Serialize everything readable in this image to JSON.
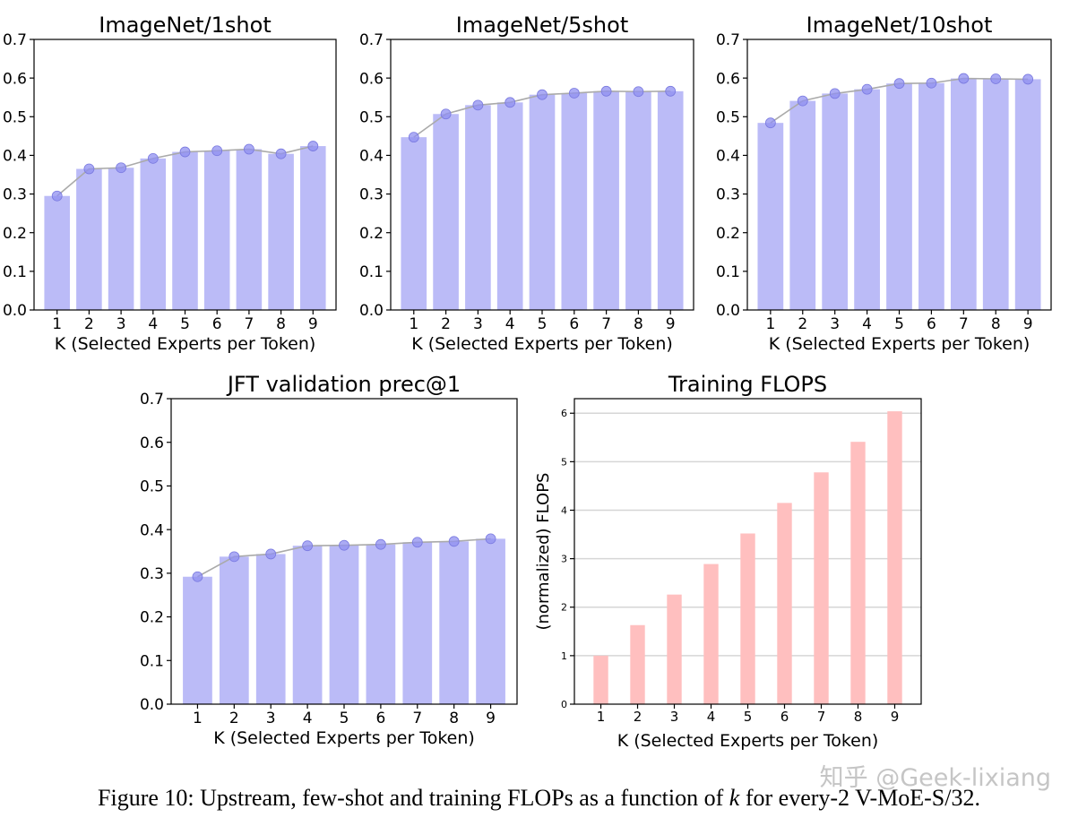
{
  "chart_data": [
    {
      "type": "bar",
      "title": "ImageNet/1shot",
      "xlabel": "K (Selected Experts per Token)",
      "ylabel": "",
      "categories": [
        "1",
        "2",
        "3",
        "4",
        "5",
        "6",
        "7",
        "8",
        "9"
      ],
      "values": [
        0.295,
        0.365,
        0.368,
        0.392,
        0.409,
        0.412,
        0.416,
        0.404,
        0.424
      ],
      "line": true,
      "ylim": [
        0,
        0.7
      ],
      "yticks": [
        "0.0",
        "0.1",
        "0.2",
        "0.3",
        "0.4",
        "0.5",
        "0.6",
        "0.7"
      ],
      "ytick_values": [
        0,
        0.1,
        0.2,
        0.3,
        0.4,
        0.5,
        0.6,
        0.7
      ],
      "grid": false,
      "color": "#bbbbf7"
    },
    {
      "type": "bar",
      "title": "ImageNet/5shot",
      "xlabel": "K (Selected Experts per Token)",
      "ylabel": "",
      "categories": [
        "1",
        "2",
        "3",
        "4",
        "5",
        "6",
        "7",
        "8",
        "9"
      ],
      "values": [
        0.447,
        0.507,
        0.53,
        0.537,
        0.557,
        0.561,
        0.566,
        0.565,
        0.566
      ],
      "line": true,
      "ylim": [
        0,
        0.7
      ],
      "yticks": [
        "0.0",
        "0.1",
        "0.2",
        "0.3",
        "0.4",
        "0.5",
        "0.6",
        "0.7"
      ],
      "ytick_values": [
        0,
        0.1,
        0.2,
        0.3,
        0.4,
        0.5,
        0.6,
        0.7
      ],
      "grid": false,
      "color": "#bbbbf7"
    },
    {
      "type": "bar",
      "title": "ImageNet/10shot",
      "xlabel": "K (Selected Experts per Token)",
      "ylabel": "",
      "categories": [
        "1",
        "2",
        "3",
        "4",
        "5",
        "6",
        "7",
        "8",
        "9"
      ],
      "values": [
        0.484,
        0.541,
        0.56,
        0.571,
        0.586,
        0.587,
        0.599,
        0.598,
        0.597
      ],
      "line": true,
      "ylim": [
        0,
        0.7
      ],
      "yticks": [
        "0.0",
        "0.1",
        "0.2",
        "0.3",
        "0.4",
        "0.5",
        "0.6",
        "0.7"
      ],
      "ytick_values": [
        0,
        0.1,
        0.2,
        0.3,
        0.4,
        0.5,
        0.6,
        0.7
      ],
      "grid": false,
      "color": "#bbbbf7"
    },
    {
      "type": "bar",
      "title": "JFT validation prec@1",
      "xlabel": "K (Selected Experts per Token)",
      "ylabel": "",
      "categories": [
        "1",
        "2",
        "3",
        "4",
        "5",
        "6",
        "7",
        "8",
        "9"
      ],
      "values": [
        0.292,
        0.338,
        0.344,
        0.363,
        0.364,
        0.366,
        0.371,
        0.373,
        0.379
      ],
      "line": true,
      "ylim": [
        0,
        0.7
      ],
      "yticks": [
        "0.0",
        "0.1",
        "0.2",
        "0.3",
        "0.4",
        "0.5",
        "0.6",
        "0.7"
      ],
      "ytick_values": [
        0,
        0.1,
        0.2,
        0.3,
        0.4,
        0.5,
        0.6,
        0.7
      ],
      "grid": false,
      "color": "#bbbbf7"
    },
    {
      "type": "bar",
      "title": "Training FLOPS",
      "xlabel": "K (Selected Experts per Token)",
      "ylabel": "(normalized) FLOPS",
      "categories": [
        "1",
        "2",
        "3",
        "4",
        "5",
        "6",
        "7",
        "8",
        "9"
      ],
      "values": [
        1.0,
        1.63,
        2.26,
        2.89,
        3.52,
        4.15,
        4.78,
        5.41,
        6.04
      ],
      "line": false,
      "ylim": [
        0,
        6.3
      ],
      "yticks": [
        "0",
        "1",
        "2",
        "3",
        "4",
        "5",
        "6"
      ],
      "ytick_values": [
        0,
        1,
        2,
        3,
        4,
        5,
        6
      ],
      "grid": true,
      "color": "#ffbfbf"
    }
  ],
  "caption": {
    "before": "Figure 10: Upstream, few-shot and training FLOPs as a function of ",
    "var": "k",
    "after": " for every-2 V-MoE-S/32."
  },
  "watermark": "知乎 @Geek-lixiang"
}
